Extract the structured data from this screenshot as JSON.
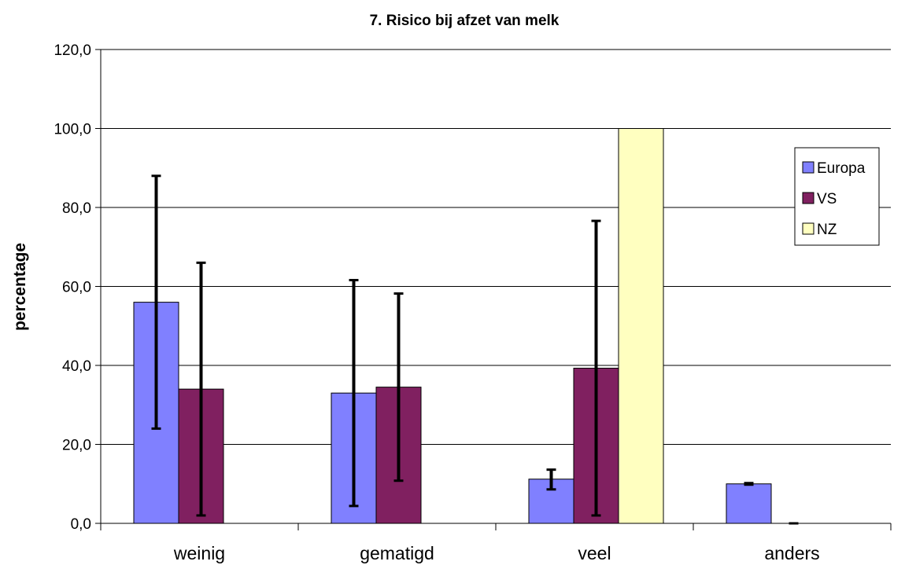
{
  "chart_data": {
    "type": "bar",
    "title": "7. Risico bij afzet van melk",
    "xlabel": "",
    "ylabel": "percentage",
    "ylim": [
      0,
      120
    ],
    "yticks": [
      "0,0",
      "20,0",
      "40,0",
      "60,0",
      "80,0",
      "100,0",
      "120,0"
    ],
    "ytick_values": [
      0,
      20,
      40,
      60,
      80,
      100,
      120
    ],
    "categories": [
      "weinig",
      "gematigd",
      "veel",
      "anders"
    ],
    "grid": true,
    "legend_position": "right",
    "series": [
      {
        "name": "Europa",
        "color": "#8080ff",
        "values": [
          56,
          33,
          11.2,
          10
        ],
        "error_low": [
          24,
          4.4,
          8.6,
          9.8
        ],
        "error_high": [
          88,
          61.6,
          13.6,
          10.2
        ]
      },
      {
        "name": "VS",
        "color": "#802060",
        "values": [
          34,
          34.5,
          39.3,
          0
        ],
        "error_low": [
          2,
          10.8,
          2,
          0
        ],
        "error_high": [
          66,
          58.2,
          76.6,
          0
        ]
      },
      {
        "name": "NZ",
        "color": "#ffffc0",
        "values": [
          0,
          0,
          100,
          0
        ],
        "error_low": [
          null,
          null,
          null,
          null
        ],
        "error_high": [
          null,
          null,
          null,
          null
        ]
      }
    ]
  }
}
